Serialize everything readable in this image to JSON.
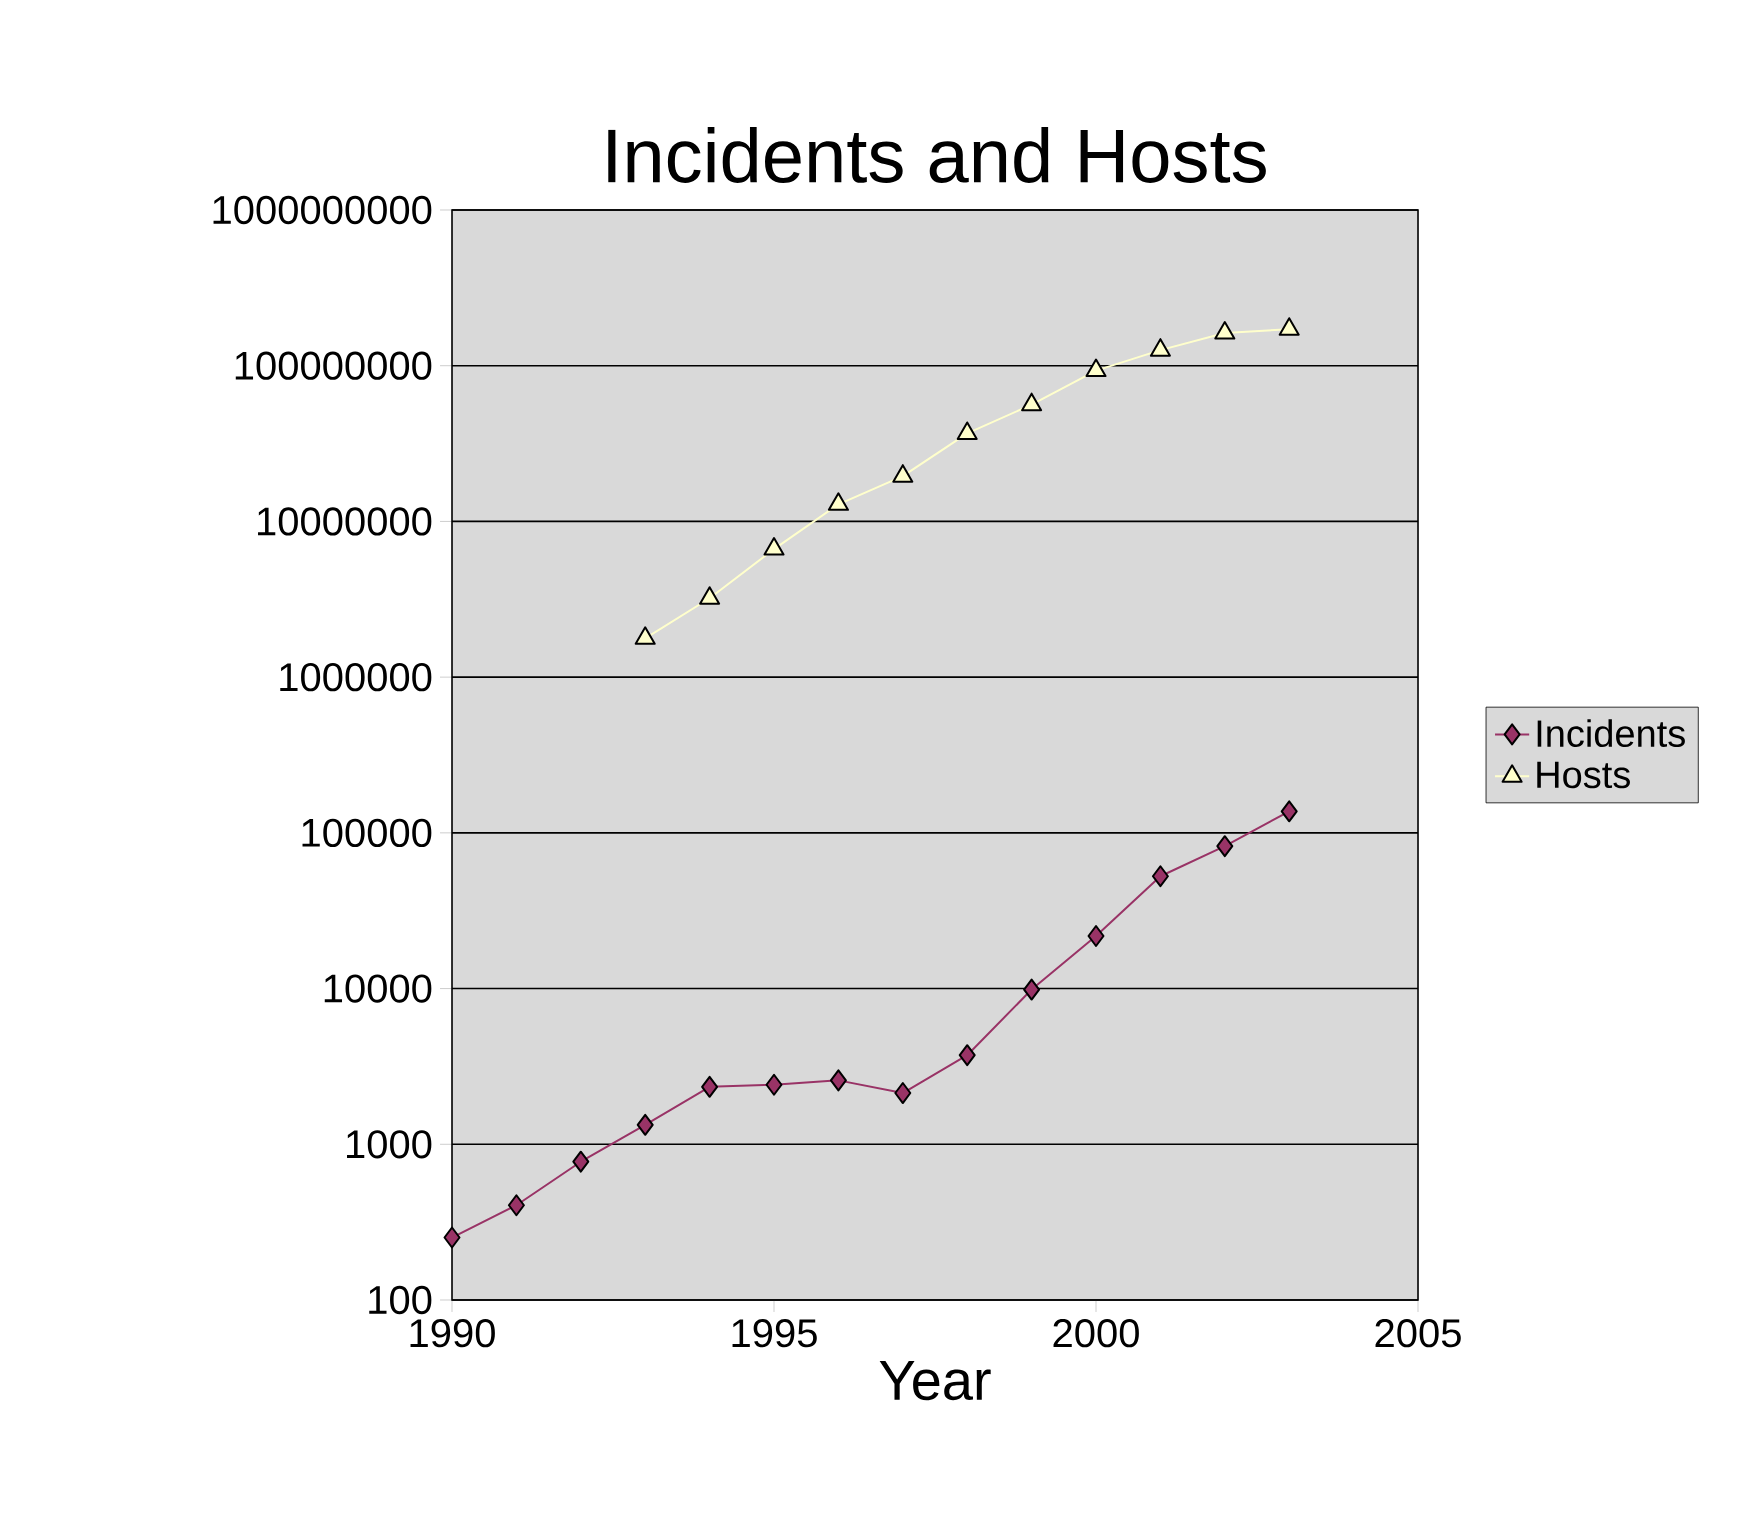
{
  "chart_data": {
    "type": "line",
    "title": "Incidents and Hosts",
    "xlabel": "Year",
    "x": [
      1990,
      1991,
      1992,
      1993,
      1994,
      1995,
      1996,
      1997,
      1998,
      1999,
      2000,
      2001,
      2002,
      2003
    ],
    "series": [
      {
        "name": "Incidents",
        "color": "#993366",
        "marker": "diamond",
        "values": [
          252,
          406,
          773,
          1334,
          2340,
          2412,
          2573,
          2134,
          3734,
          9859,
          21756,
          52658,
          82094,
          137529
        ]
      },
      {
        "name": "Hosts",
        "color": "#ffffcc",
        "marker": "triangle",
        "values": [
          null,
          null,
          null,
          1776000,
          3212000,
          6642000,
          12881000,
          19540000,
          36739000,
          56218000,
          93047000,
          125888000,
          162128000,
          171638000
        ]
      }
    ],
    "log": "y",
    "xlim": [
      1990,
      2005
    ],
    "xticks": [
      1990,
      1995,
      2000,
      2005
    ],
    "ylim": [
      100,
      1000000000
    ],
    "yticks": [
      100,
      1000,
      10000,
      100000,
      1000000,
      10000000,
      100000000,
      1000000000
    ],
    "grid": "y",
    "legend": "right"
  }
}
